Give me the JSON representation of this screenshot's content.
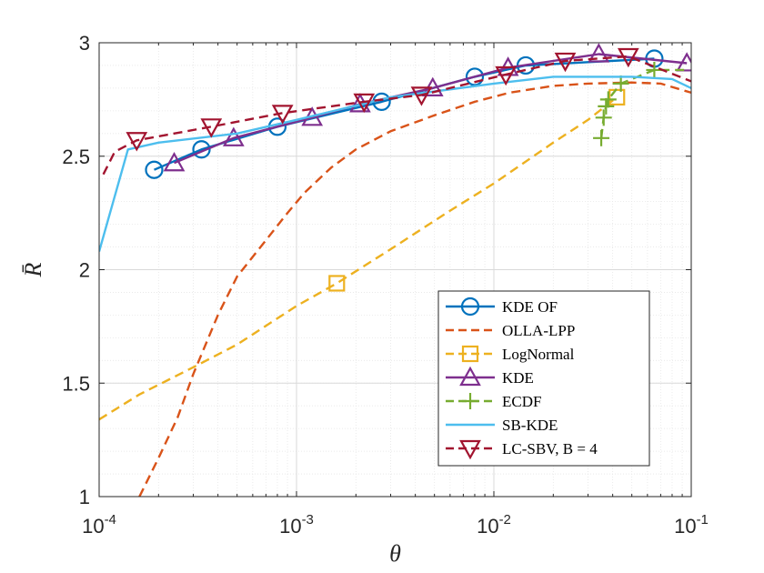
{
  "chart_data": {
    "type": "line",
    "xlabel": "θ",
    "ylabel": "R̄",
    "xscale": "log",
    "xlim": [
      0.0001,
      0.1
    ],
    "ylim": [
      1,
      3
    ],
    "xticks": [
      {
        "value": 0.0001,
        "base": "10",
        "exp": "-4"
      },
      {
        "value": 0.001,
        "base": "10",
        "exp": "-3"
      },
      {
        "value": 0.01,
        "base": "10",
        "exp": "-2"
      },
      {
        "value": 0.1,
        "base": "10",
        "exp": "-1"
      }
    ],
    "yticks": [
      {
        "value": 1,
        "label": "1"
      },
      {
        "value": 1.5,
        "label": "1.5"
      },
      {
        "value": 2,
        "label": "2"
      },
      {
        "value": 2.5,
        "label": "2.5"
      },
      {
        "value": 3,
        "label": "3"
      }
    ],
    "grid": true,
    "minor_grid": true,
    "legend_position": "bottom-right",
    "series": [
      {
        "name": "KDE OF",
        "color": "#0072BD",
        "dash": "solid",
        "marker": "circle",
        "x": [
          0.00019,
          0.00033,
          0.0008,
          0.0027,
          0.008,
          0.0145,
          0.065
        ],
        "y": [
          2.44,
          2.53,
          2.63,
          2.74,
          2.85,
          2.9,
          2.93
        ],
        "marker_x": [
          0.00019,
          0.00033,
          0.0008,
          0.0027,
          0.008,
          0.0145,
          0.065
        ],
        "marker_y": [
          2.44,
          2.53,
          2.63,
          2.74,
          2.85,
          2.9,
          2.93
        ]
      },
      {
        "name": "OLLA-LPP",
        "color": "#D95319",
        "dash": "dashed",
        "marker": "none",
        "x": [
          0.00016,
          0.0002,
          0.00025,
          0.0003,
          0.0004,
          0.0005,
          0.0007,
          0.0009,
          0.0011,
          0.0015,
          0.002,
          0.003,
          0.005,
          0.008,
          0.012,
          0.02,
          0.03,
          0.05,
          0.07,
          0.1
        ],
        "y": [
          1.0,
          1.17,
          1.35,
          1.54,
          1.8,
          1.97,
          2.13,
          2.25,
          2.34,
          2.45,
          2.53,
          2.61,
          2.68,
          2.74,
          2.78,
          2.81,
          2.82,
          2.825,
          2.82,
          2.78
        ],
        "marker_x": [],
        "marker_y": []
      },
      {
        "name": "LogNormal",
        "color": "#EDB120",
        "dash": "dashed",
        "marker": "square",
        "x": [
          0.0001,
          0.00016,
          0.0003,
          0.0005,
          0.001,
          0.0016,
          0.003,
          0.006,
          0.01,
          0.02,
          0.03,
          0.042
        ],
        "y": [
          1.34,
          1.45,
          1.57,
          1.67,
          1.84,
          1.94,
          2.09,
          2.26,
          2.38,
          2.56,
          2.66,
          2.76
        ],
        "marker_x": [
          0.0016,
          0.042
        ],
        "marker_y": [
          1.94,
          2.76
        ]
      },
      {
        "name": "KDE",
        "color": "#7E2F8E",
        "dash": "solid",
        "marker": "triangle",
        "x": [
          0.00024,
          0.00048,
          0.0012,
          0.0021,
          0.0049,
          0.0118,
          0.034,
          0.095
        ],
        "y": [
          2.47,
          2.58,
          2.67,
          2.73,
          2.8,
          2.89,
          2.95,
          2.91
        ],
        "marker_x": [
          0.00024,
          0.00048,
          0.0012,
          0.0021,
          0.0049,
          0.0118,
          0.034,
          0.095
        ],
        "marker_y": [
          2.47,
          2.58,
          2.67,
          2.73,
          2.8,
          2.89,
          2.95,
          2.91
        ]
      },
      {
        "name": "ECDF",
        "color": "#77AC30",
        "dash": "dashed",
        "marker": "plus",
        "x": [
          0.035,
          0.036,
          0.037,
          0.038,
          0.044,
          0.065,
          0.095
        ],
        "y": [
          2.58,
          2.67,
          2.72,
          2.75,
          2.82,
          2.88,
          2.88
        ],
        "marker_x": [
          0.035,
          0.036,
          0.037,
          0.038,
          0.044,
          0.065
        ],
        "marker_y": [
          2.58,
          2.67,
          2.72,
          2.75,
          2.82,
          2.88
        ]
      },
      {
        "name": "SB-KDE",
        "color": "#4DBEEE",
        "dash": "solid",
        "marker": "none",
        "x": [
          0.0001,
          0.00014,
          0.0002,
          0.0005,
          0.001,
          0.003,
          0.01,
          0.02,
          0.05,
          0.08,
          0.1
        ],
        "y": [
          2.08,
          2.53,
          2.56,
          2.6,
          2.66,
          2.76,
          2.82,
          2.85,
          2.85,
          2.84,
          2.8
        ],
        "marker_x": [],
        "marker_y": []
      },
      {
        "name": "LC-SBV, B = 4",
        "color": "#A2142F",
        "dash": "dashed",
        "marker": "triangle-down",
        "x": [
          0.000105,
          0.00012,
          0.000155,
          0.00037,
          0.00085,
          0.0022,
          0.0043,
          0.0115,
          0.023,
          0.048,
          0.1
        ],
        "y": [
          2.42,
          2.52,
          2.57,
          2.63,
          2.69,
          2.74,
          2.77,
          2.86,
          2.92,
          2.94,
          2.83
        ],
        "marker_x": [
          0.000155,
          0.00037,
          0.00085,
          0.0022,
          0.0043,
          0.0115,
          0.023,
          0.048
        ],
        "marker_y": [
          2.57,
          2.63,
          2.69,
          2.74,
          2.77,
          2.86,
          2.92,
          2.94
        ]
      }
    ]
  }
}
